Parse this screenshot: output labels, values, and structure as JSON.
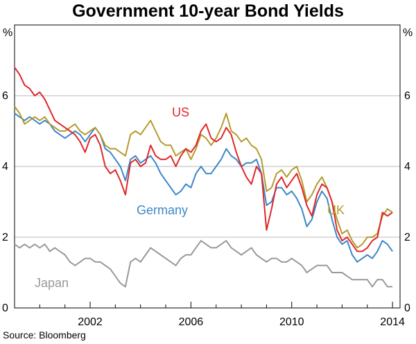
{
  "chart_data": {
    "type": "line",
    "title": "Government 10-year Bond Yields",
    "xlabel": "",
    "ylabel": "%",
    "y_unit_left": "%",
    "y_unit_right": "%",
    "xlim": [
      1999,
      2014.3
    ],
    "ylim": [
      0,
      8
    ],
    "x_ticks": [
      2002,
      2006,
      2010,
      2014
    ],
    "y_ticks": [
      0,
      2,
      4,
      6
    ],
    "grid": "horizontal",
    "source": "Source: Bloomberg",
    "series": [
      {
        "name": "US",
        "color": "#e0262b",
        "x": [
          1999.0,
          1999.2,
          1999.4,
          1999.6,
          1999.8,
          2000.0,
          2000.2,
          2000.4,
          2000.6,
          2000.8,
          2001.0,
          2001.2,
          2001.4,
          2001.6,
          2001.8,
          2002.0,
          2002.2,
          2002.4,
          2002.6,
          2002.8,
          2003.0,
          2003.2,
          2003.4,
          2003.6,
          2003.8,
          2004.0,
          2004.2,
          2004.4,
          2004.6,
          2004.8,
          2005.0,
          2005.2,
          2005.4,
          2005.6,
          2005.8,
          2006.0,
          2006.2,
          2006.4,
          2006.6,
          2006.8,
          2007.0,
          2007.2,
          2007.4,
          2007.6,
          2007.8,
          2008.0,
          2008.2,
          2008.4,
          2008.6,
          2008.8,
          2009.0,
          2009.2,
          2009.4,
          2009.6,
          2009.8,
          2010.0,
          2010.2,
          2010.4,
          2010.6,
          2010.8,
          2011.0,
          2011.2,
          2011.4,
          2011.6,
          2011.8,
          2012.0,
          2012.2,
          2012.4,
          2012.6,
          2012.8,
          2013.0,
          2013.2,
          2013.4,
          2013.6,
          2013.8,
          2014.0
        ],
        "values": [
          6.8,
          6.6,
          6.3,
          6.2,
          6.0,
          6.1,
          5.9,
          5.6,
          5.3,
          5.2,
          5.1,
          5.0,
          4.9,
          4.7,
          4.4,
          4.8,
          4.9,
          4.6,
          4.0,
          3.8,
          3.9,
          3.6,
          3.2,
          4.1,
          4.2,
          4.0,
          4.1,
          4.6,
          4.3,
          4.2,
          4.2,
          4.3,
          4.0,
          4.3,
          4.5,
          4.4,
          4.6,
          5.0,
          5.2,
          4.8,
          4.7,
          4.8,
          5.1,
          4.9,
          4.4,
          4.0,
          3.7,
          3.5,
          4.0,
          3.8,
          2.2,
          2.8,
          3.5,
          3.7,
          3.4,
          3.6,
          3.8,
          3.4,
          2.9,
          2.6,
          3.2,
          3.5,
          3.4,
          3.0,
          2.2,
          1.9,
          2.0,
          1.8,
          1.6,
          1.6,
          1.7,
          1.9,
          2.0,
          2.7,
          2.6,
          2.7
        ]
      },
      {
        "name": "UK",
        "color": "#b59a2b",
        "x": [
          1999.0,
          1999.2,
          1999.4,
          1999.6,
          1999.8,
          2000.0,
          2000.2,
          2000.4,
          2000.6,
          2000.8,
          2001.0,
          2001.2,
          2001.4,
          2001.6,
          2001.8,
          2002.0,
          2002.2,
          2002.4,
          2002.6,
          2002.8,
          2003.0,
          2003.2,
          2003.4,
          2003.6,
          2003.8,
          2004.0,
          2004.2,
          2004.4,
          2004.6,
          2004.8,
          2005.0,
          2005.2,
          2005.4,
          2005.6,
          2005.8,
          2006.0,
          2006.2,
          2006.4,
          2006.6,
          2006.8,
          2007.0,
          2007.2,
          2007.4,
          2007.6,
          2007.8,
          2008.0,
          2008.2,
          2008.4,
          2008.6,
          2008.8,
          2009.0,
          2009.2,
          2009.4,
          2009.6,
          2009.8,
          2010.0,
          2010.2,
          2010.4,
          2010.6,
          2010.8,
          2011.0,
          2011.2,
          2011.4,
          2011.6,
          2011.8,
          2012.0,
          2012.2,
          2012.4,
          2012.6,
          2012.8,
          2013.0,
          2013.2,
          2013.4,
          2013.6,
          2013.8,
          2014.0
        ],
        "values": [
          5.7,
          5.5,
          5.2,
          5.3,
          5.4,
          5.3,
          5.4,
          5.2,
          5.1,
          5.0,
          5.0,
          5.1,
          5.2,
          5.0,
          4.9,
          5.0,
          5.1,
          4.9,
          4.6,
          4.5,
          4.5,
          4.4,
          4.3,
          4.9,
          5.0,
          4.9,
          5.1,
          5.3,
          5.0,
          4.7,
          4.6,
          4.6,
          4.3,
          4.4,
          4.5,
          4.2,
          4.5,
          4.9,
          4.8,
          4.6,
          4.8,
          5.1,
          5.5,
          5.0,
          4.9,
          4.7,
          4.8,
          4.6,
          4.5,
          4.2,
          3.3,
          3.4,
          3.8,
          3.9,
          3.7,
          3.9,
          4.0,
          3.6,
          3.0,
          3.2,
          3.5,
          3.7,
          3.4,
          3.0,
          2.5,
          2.1,
          2.2,
          1.9,
          1.7,
          1.8,
          2.0,
          2.0,
          2.1,
          2.6,
          2.8,
          2.7
        ]
      },
      {
        "name": "Germany",
        "color": "#3b87c7",
        "x": [
          1999.0,
          1999.2,
          1999.4,
          1999.6,
          1999.8,
          2000.0,
          2000.2,
          2000.4,
          2000.6,
          2000.8,
          2001.0,
          2001.2,
          2001.4,
          2001.6,
          2001.8,
          2002.0,
          2002.2,
          2002.4,
          2002.6,
          2002.8,
          2003.0,
          2003.2,
          2003.4,
          2003.6,
          2003.8,
          2004.0,
          2004.2,
          2004.4,
          2004.6,
          2004.8,
          2005.0,
          2005.2,
          2005.4,
          2005.6,
          2005.8,
          2006.0,
          2006.2,
          2006.4,
          2006.6,
          2006.8,
          2007.0,
          2007.2,
          2007.4,
          2007.6,
          2007.8,
          2008.0,
          2008.2,
          2008.4,
          2008.6,
          2008.8,
          2009.0,
          2009.2,
          2009.4,
          2009.6,
          2009.8,
          2010.0,
          2010.2,
          2010.4,
          2010.6,
          2010.8,
          2011.0,
          2011.2,
          2011.4,
          2011.6,
          2011.8,
          2012.0,
          2012.2,
          2012.4,
          2012.6,
          2012.8,
          2013.0,
          2013.2,
          2013.4,
          2013.6,
          2013.8,
          2014.0
        ],
        "values": [
          5.5,
          5.4,
          5.3,
          5.4,
          5.3,
          5.2,
          5.3,
          5.2,
          5.0,
          4.9,
          4.8,
          4.9,
          5.0,
          4.9,
          4.7,
          4.9,
          5.1,
          4.9,
          4.5,
          4.4,
          4.2,
          4.0,
          3.6,
          4.2,
          4.3,
          4.1,
          4.2,
          4.3,
          4.1,
          3.8,
          3.6,
          3.4,
          3.2,
          3.3,
          3.5,
          3.4,
          3.8,
          4.0,
          3.8,
          3.8,
          4.0,
          4.2,
          4.5,
          4.3,
          4.2,
          4.0,
          4.1,
          4.1,
          4.2,
          3.8,
          2.9,
          3.0,
          3.4,
          3.4,
          3.2,
          3.3,
          3.1,
          2.8,
          2.3,
          2.5,
          3.0,
          3.3,
          3.1,
          2.5,
          2.0,
          1.8,
          1.9,
          1.5,
          1.3,
          1.4,
          1.5,
          1.4,
          1.6,
          1.9,
          1.8,
          1.6
        ]
      },
      {
        "name": "Japan",
        "color": "#999999",
        "x": [
          1999.0,
          1999.2,
          1999.4,
          1999.6,
          1999.8,
          2000.0,
          2000.2,
          2000.4,
          2000.6,
          2000.8,
          2001.0,
          2001.2,
          2001.4,
          2001.6,
          2001.8,
          2002.0,
          2002.2,
          2002.4,
          2002.6,
          2002.8,
          2003.0,
          2003.2,
          2003.4,
          2003.6,
          2003.8,
          2004.0,
          2004.2,
          2004.4,
          2004.6,
          2004.8,
          2005.0,
          2005.2,
          2005.4,
          2005.6,
          2005.8,
          2006.0,
          2006.2,
          2006.4,
          2006.6,
          2006.8,
          2007.0,
          2007.2,
          2007.4,
          2007.6,
          2007.8,
          2008.0,
          2008.2,
          2008.4,
          2008.6,
          2008.8,
          2009.0,
          2009.2,
          2009.4,
          2009.6,
          2009.8,
          2010.0,
          2010.2,
          2010.4,
          2010.6,
          2010.8,
          2011.0,
          2011.2,
          2011.4,
          2011.6,
          2011.8,
          2012.0,
          2012.2,
          2012.4,
          2012.6,
          2012.8,
          2013.0,
          2013.2,
          2013.4,
          2013.6,
          2013.8,
          2014.0
        ],
        "values": [
          1.8,
          1.7,
          1.8,
          1.7,
          1.8,
          1.7,
          1.8,
          1.6,
          1.7,
          1.6,
          1.5,
          1.3,
          1.2,
          1.3,
          1.4,
          1.4,
          1.3,
          1.3,
          1.2,
          1.1,
          0.9,
          0.7,
          0.6,
          1.3,
          1.4,
          1.3,
          1.5,
          1.7,
          1.6,
          1.5,
          1.4,
          1.3,
          1.2,
          1.4,
          1.5,
          1.5,
          1.7,
          1.9,
          1.8,
          1.7,
          1.7,
          1.8,
          1.9,
          1.7,
          1.6,
          1.5,
          1.6,
          1.7,
          1.5,
          1.4,
          1.3,
          1.4,
          1.4,
          1.3,
          1.3,
          1.4,
          1.3,
          1.2,
          1.0,
          1.1,
          1.2,
          1.2,
          1.2,
          1.0,
          1.0,
          1.0,
          0.9,
          0.8,
          0.8,
          0.8,
          0.8,
          0.6,
          0.8,
          0.8,
          0.6,
          0.6
        ]
      }
    ]
  }
}
